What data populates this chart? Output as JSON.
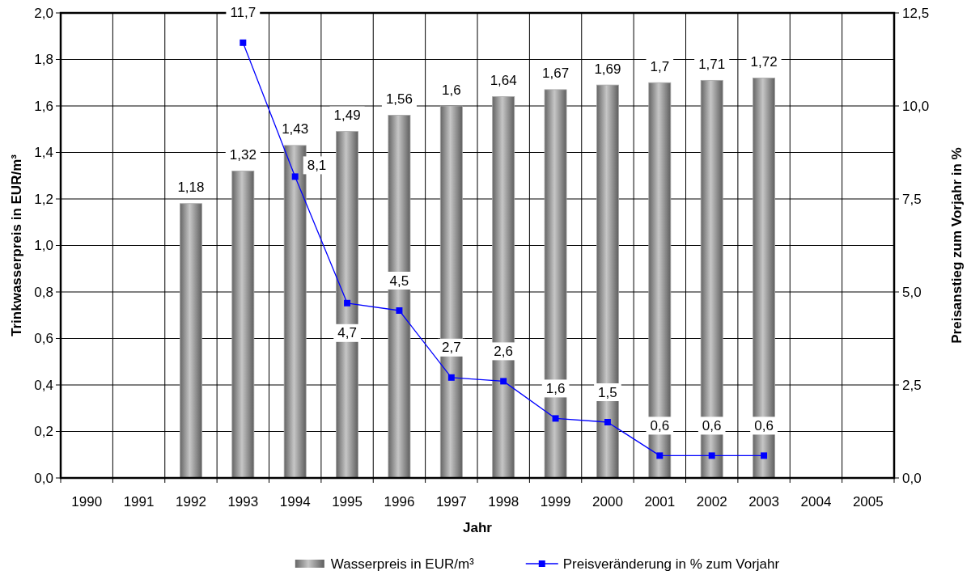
{
  "chart_data": {
    "type": "bar",
    "xlabel": "Jahr",
    "ylabel": "Trinkwasserpreis in EUR/m³",
    "y2label": "Preisanstieg zum Vorjahr in %",
    "categories": [
      "1990",
      "1991",
      "1992",
      "1993",
      "1994",
      "1995",
      "1996",
      "1997",
      "1998",
      "1999",
      "2000",
      "2001",
      "2002",
      "2003",
      "2004",
      "2005"
    ],
    "series": [
      {
        "name": "Wasserpreis in EUR/m³",
        "color": "#a6a6a6",
        "values": [
          null,
          null,
          1.18,
          1.32,
          1.43,
          1.49,
          1.56,
          1.6,
          1.64,
          1.67,
          1.69,
          1.7,
          1.71,
          1.72,
          null,
          null
        ],
        "value_labels": [
          null,
          null,
          "1,18",
          "1,32",
          "1,43",
          "1,49",
          "1,56",
          "1,6",
          "1,64",
          "1,67",
          "1,69",
          "1,7",
          "1,71",
          "1,72",
          null,
          null
        ]
      },
      {
        "name": "Preisveränderung in % zum Vorjahr",
        "type": "line",
        "axis": "y2",
        "color": "#0000ff",
        "marker": "square",
        "values": [
          null,
          null,
          null,
          11.7,
          8.1,
          4.7,
          4.5,
          2.7,
          2.6,
          1.6,
          1.5,
          0.6,
          0.6,
          0.6,
          null,
          null
        ],
        "value_labels": [
          null,
          null,
          null,
          "11,7",
          "8,1",
          "4,7",
          "4,5",
          "2,7",
          "2,6",
          "1,6",
          "1,5",
          "0,6",
          "0,6",
          "0,6",
          null,
          null
        ]
      }
    ],
    "ylim": [
      0,
      2
    ],
    "yticks": [
      {
        "value": 0,
        "label": "0,0"
      },
      {
        "value": 0.2,
        "label": "0,2"
      },
      {
        "value": 0.4,
        "label": "0,4"
      },
      {
        "value": 0.6,
        "label": "0,6"
      },
      {
        "value": 0.8,
        "label": "0,8"
      },
      {
        "value": 1,
        "label": "1,0"
      },
      {
        "value": 1.2,
        "label": "1,2"
      },
      {
        "value": 1.4,
        "label": "1,4"
      },
      {
        "value": 1.6,
        "label": "1,6"
      },
      {
        "value": 1.8,
        "label": "1,8"
      },
      {
        "value": 2,
        "label": "2,0"
      }
    ],
    "y2lim": [
      0,
      12.5
    ],
    "y2ticks": [
      {
        "value": 0,
        "label": "0,0"
      },
      {
        "value": 2.5,
        "label": "2,5"
      },
      {
        "value": 5,
        "label": "5,0"
      },
      {
        "value": 7.5,
        "label": "7,5"
      },
      {
        "value": 10,
        "label": "10,0"
      },
      {
        "value": 12.5,
        "label": "12,5"
      }
    ],
    "grid": true,
    "legend": "bottom"
  }
}
